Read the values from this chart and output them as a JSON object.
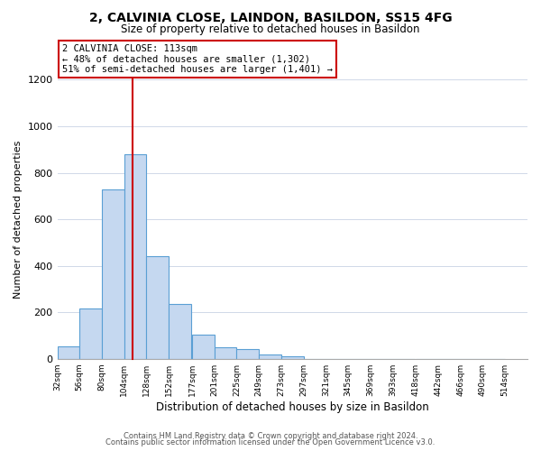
{
  "title": "2, CALVINIA CLOSE, LAINDON, BASILDON, SS15 4FG",
  "subtitle": "Size of property relative to detached houses in Basildon",
  "xlabel": "Distribution of detached houses by size in Basildon",
  "ylabel": "Number of detached properties",
  "footer_lines": [
    "Contains HM Land Registry data © Crown copyright and database right 2024.",
    "Contains public sector information licensed under the Open Government Licence v3.0."
  ],
  "bin_labels": [
    "32sqm",
    "56sqm",
    "80sqm",
    "104sqm",
    "128sqm",
    "152sqm",
    "177sqm",
    "201sqm",
    "225sqm",
    "249sqm",
    "273sqm",
    "297sqm",
    "321sqm",
    "345sqm",
    "369sqm",
    "393sqm",
    "418sqm",
    "442sqm",
    "466sqm",
    "490sqm",
    "514sqm"
  ],
  "bin_edges": [
    32,
    56,
    80,
    104,
    128,
    152,
    177,
    201,
    225,
    249,
    273,
    297,
    321,
    345,
    369,
    393,
    418,
    442,
    466,
    490,
    514
  ],
  "bar_heights": [
    55,
    215,
    730,
    880,
    440,
    235,
    105,
    50,
    40,
    20,
    10,
    0,
    0,
    0,
    0,
    0,
    0,
    0,
    0,
    0
  ],
  "bar_color": "#c5d8f0",
  "bar_edge_color": "#5a9fd4",
  "property_size": 113,
  "vline_x": 113,
  "vline_color": "#cc0000",
  "annotation_text": "2 CALVINIA CLOSE: 113sqm\n← 48% of detached houses are smaller (1,302)\n51% of semi-detached houses are larger (1,401) →",
  "annotation_box_color": "#ffffff",
  "annotation_box_edge_color": "#cc0000",
  "ylim": [
    0,
    1200
  ],
  "yticks": [
    0,
    200,
    400,
    600,
    800,
    1000,
    1200
  ],
  "background_color": "#ffffff",
  "grid_color": "#d0d8e8"
}
